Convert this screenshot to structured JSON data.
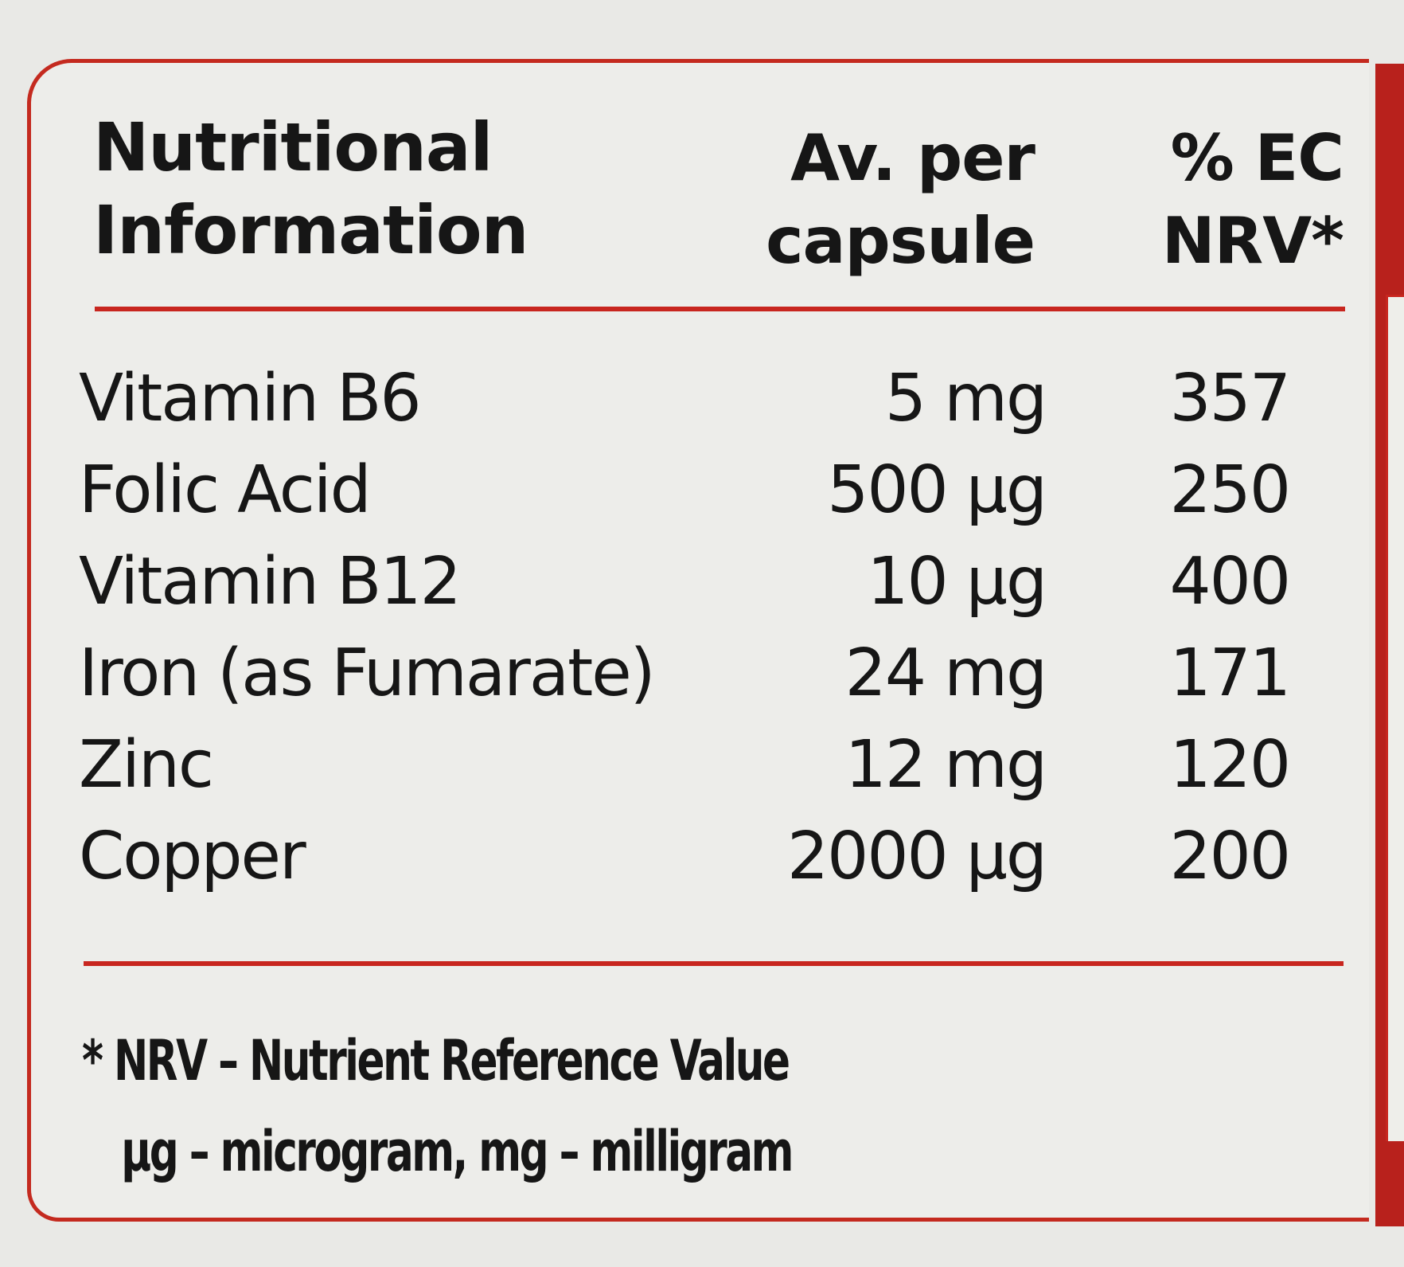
{
  "header": {
    "title_line1": "Nutritional",
    "title_line2": "Information",
    "per_line1": "Av. per",
    "per_line2": "capsule",
    "nrv_line1": "% EC",
    "nrv_line2": "NRV*"
  },
  "rows": [
    {
      "name": "Vitamin B6",
      "amount": "5 mg",
      "nrv": "357"
    },
    {
      "name": "Folic Acid",
      "amount": "500 µg",
      "nrv": "250"
    },
    {
      "name": "Vitamin B12",
      "amount": "10 µg",
      "nrv": "400"
    },
    {
      "name": "Iron (as Fumarate)",
      "amount": "24 mg",
      "nrv": "171"
    },
    {
      "name": "Zinc",
      "amount": "12 mg",
      "nrv": "120"
    },
    {
      "name": "Copper",
      "amount": "2000 µg",
      "nrv": "200"
    }
  ],
  "footnote": {
    "line1": "* NRV – Nutrient Reference Value",
    "line2": "µg – microgram, mg – milligram"
  },
  "colors": {
    "accent": "#c8261f",
    "panel": "#ededea",
    "text": "#161616"
  }
}
